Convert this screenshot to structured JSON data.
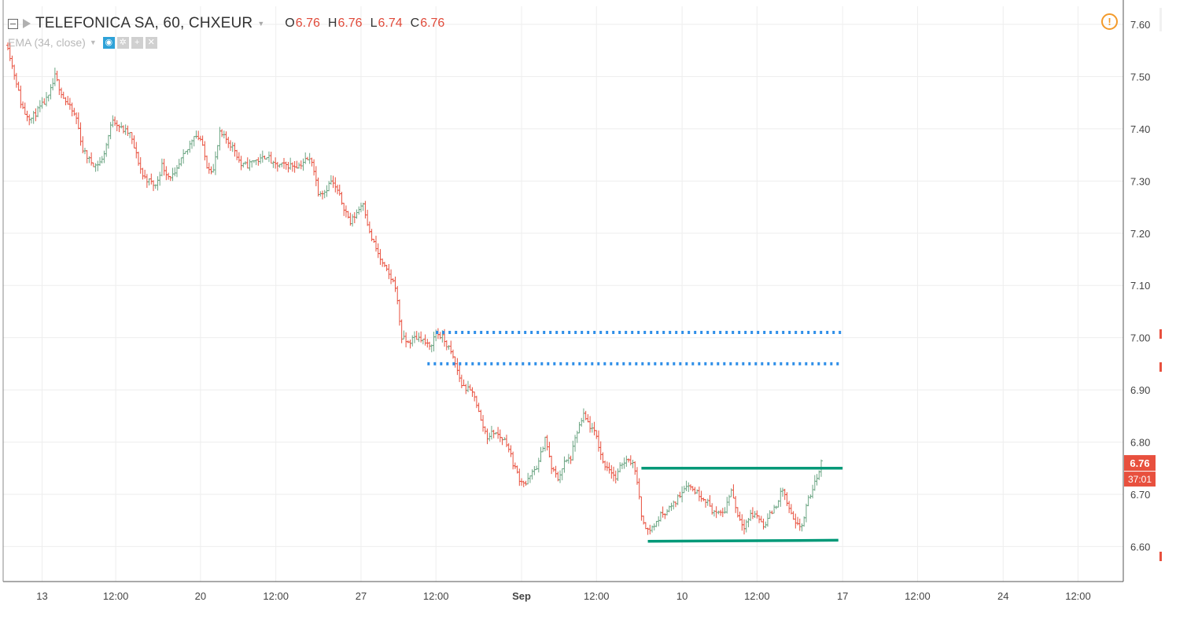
{
  "header": {
    "symbol": "TELEFONICA SA, 60, CHXEUR",
    "ohlc": [
      {
        "key": "O",
        "value": "6.76"
      },
      {
        "key": "H",
        "value": "6.76"
      },
      {
        "key": "L",
        "value": "6.74"
      },
      {
        "key": "C",
        "value": "6.76"
      }
    ]
  },
  "indicator": {
    "label": "EMA (34, close)"
  },
  "icons": [
    "collapse-icon",
    "flag-icon",
    "eye-icon",
    "gear-icon",
    "plus-icon",
    "close-icon",
    "warning-icon"
  ],
  "colors": {
    "up": "#6ba583",
    "down": "#e8503e",
    "grid": "#eeeeee",
    "axis_text": "#444444",
    "price_badge": "#e8503e",
    "dotted_lines": "#2e8ee8",
    "channel_lines": "#009978"
  },
  "chart_data": {
    "type": "ohlc",
    "title": "TELEFONICA SA, 60, CHXEUR",
    "interval": "60",
    "ylim": [
      6.52,
      7.63
    ],
    "y_ticks": [
      "7.60",
      "7.50",
      "7.40",
      "7.30",
      "7.20",
      "7.10",
      "7.00",
      "6.90",
      "6.80",
      "6.70",
      "6.60"
    ],
    "x_ticks": [
      "13",
      "12:00",
      "20",
      "12:00",
      "27",
      "12:00",
      "Sep",
      "12:00",
      "10",
      "12:00",
      "17",
      "12:00",
      "24",
      "12:00"
    ],
    "last_price": "6.76",
    "countdown": "37:01",
    "close_path": [
      [
        0.0,
        7.56
      ],
      [
        0.2,
        7.52
      ],
      [
        0.4,
        7.49
      ],
      [
        0.6,
        7.45
      ],
      [
        0.8,
        7.43
      ],
      [
        1.1,
        7.42
      ],
      [
        1.5,
        7.44
      ],
      [
        1.9,
        7.46
      ],
      [
        2.2,
        7.5
      ],
      [
        2.6,
        7.46
      ],
      [
        2.9,
        7.44
      ],
      [
        3.2,
        7.42
      ],
      [
        3.5,
        7.36
      ],
      [
        3.8,
        7.34
      ],
      [
        4.1,
        7.33
      ],
      [
        4.4,
        7.34
      ],
      [
        4.6,
        7.37
      ],
      [
        4.9,
        7.42
      ],
      [
        5.3,
        7.4
      ],
      [
        5.7,
        7.39
      ],
      [
        6.0,
        7.35
      ],
      [
        6.3,
        7.31
      ],
      [
        6.6,
        7.3
      ],
      [
        6.9,
        7.29
      ],
      [
        7.2,
        7.33
      ],
      [
        7.5,
        7.31
      ],
      [
        7.8,
        7.31
      ],
      [
        8.1,
        7.34
      ],
      [
        8.4,
        7.36
      ],
      [
        8.7,
        7.39
      ],
      [
        9.0,
        7.38
      ],
      [
        9.3,
        7.33
      ],
      [
        9.6,
        7.32
      ],
      [
        9.9,
        7.39
      ],
      [
        10.2,
        7.38
      ],
      [
        10.6,
        7.36
      ],
      [
        10.9,
        7.33
      ],
      [
        11.2,
        7.33
      ],
      [
        11.5,
        7.34
      ],
      [
        11.8,
        7.34
      ],
      [
        12.1,
        7.35
      ],
      [
        12.4,
        7.33
      ],
      [
        12.7,
        7.33
      ],
      [
        13.0,
        7.33
      ],
      [
        13.3,
        7.33
      ],
      [
        13.6,
        7.33
      ],
      [
        13.9,
        7.34
      ],
      [
        14.2,
        7.34
      ],
      [
        14.5,
        7.28
      ],
      [
        14.8,
        7.28
      ],
      [
        15.1,
        7.3
      ],
      [
        15.4,
        7.28
      ],
      [
        15.7,
        7.25
      ],
      [
        16.0,
        7.22
      ],
      [
        16.3,
        7.24
      ],
      [
        16.6,
        7.26
      ],
      [
        16.9,
        7.2
      ],
      [
        17.2,
        7.17
      ],
      [
        17.5,
        7.14
      ],
      [
        17.8,
        7.12
      ],
      [
        18.1,
        7.1
      ],
      [
        18.4,
        7.0
      ],
      [
        18.7,
        6.99
      ],
      [
        19.0,
        7.0
      ],
      [
        19.3,
        7.0
      ],
      [
        19.7,
        6.98
      ],
      [
        20.0,
        7.01
      ],
      [
        20.3,
        7.0
      ],
      [
        20.6,
        6.98
      ],
      [
        20.9,
        6.95
      ],
      [
        21.2,
        6.91
      ],
      [
        21.5,
        6.9
      ],
      [
        21.8,
        6.89
      ],
      [
        22.1,
        6.84
      ],
      [
        22.4,
        6.81
      ],
      [
        22.7,
        6.82
      ],
      [
        23.0,
        6.81
      ],
      [
        23.3,
        6.8
      ],
      [
        23.6,
        6.76
      ],
      [
        23.9,
        6.73
      ],
      [
        24.2,
        6.72
      ],
      [
        24.5,
        6.74
      ],
      [
        24.8,
        6.76
      ],
      [
        25.1,
        6.81
      ],
      [
        25.4,
        6.75
      ],
      [
        25.7,
        6.73
      ],
      [
        26.0,
        6.76
      ],
      [
        26.3,
        6.77
      ],
      [
        26.6,
        6.82
      ],
      [
        26.9,
        6.85
      ],
      [
        27.2,
        6.83
      ],
      [
        27.5,
        6.81
      ],
      [
        27.8,
        6.76
      ],
      [
        28.1,
        6.75
      ],
      [
        28.4,
        6.73
      ],
      [
        28.7,
        6.76
      ],
      [
        29.0,
        6.77
      ],
      [
        29.3,
        6.75
      ],
      [
        29.6,
        6.66
      ],
      [
        29.9,
        6.63
      ],
      [
        30.2,
        6.64
      ],
      [
        30.5,
        6.66
      ],
      [
        30.8,
        6.67
      ],
      [
        31.1,
        6.68
      ],
      [
        31.4,
        6.7
      ],
      [
        31.7,
        6.72
      ],
      [
        32.0,
        6.71
      ],
      [
        32.3,
        6.7
      ],
      [
        32.6,
        6.69
      ],
      [
        32.9,
        6.67
      ],
      [
        33.2,
        6.66
      ],
      [
        33.5,
        6.67
      ],
      [
        33.8,
        6.71
      ],
      [
        34.1,
        6.66
      ],
      [
        34.4,
        6.64
      ],
      [
        34.7,
        6.66
      ],
      [
        35.0,
        6.66
      ],
      [
        35.3,
        6.64
      ],
      [
        35.6,
        6.66
      ],
      [
        35.9,
        6.68
      ],
      [
        36.2,
        6.71
      ],
      [
        36.5,
        6.67
      ],
      [
        36.8,
        6.64
      ],
      [
        37.1,
        6.64
      ],
      [
        37.4,
        6.69
      ],
      [
        37.7,
        6.72
      ],
      [
        38.0,
        6.76
      ]
    ],
    "annotations": [
      {
        "type": "dotted-line",
        "from": [
          20.0,
          7.01
        ],
        "to": [
          39.0,
          7.01
        ]
      },
      {
        "type": "dotted-line",
        "from": [
          19.6,
          6.95
        ],
        "to": [
          39.0,
          6.95
        ]
      },
      {
        "type": "channel-line",
        "from": [
          29.6,
          6.75
        ],
        "to": [
          39.0,
          6.75
        ]
      },
      {
        "type": "channel-line",
        "from": [
          29.9,
          6.61
        ],
        "to": [
          38.8,
          6.612
        ]
      }
    ]
  }
}
